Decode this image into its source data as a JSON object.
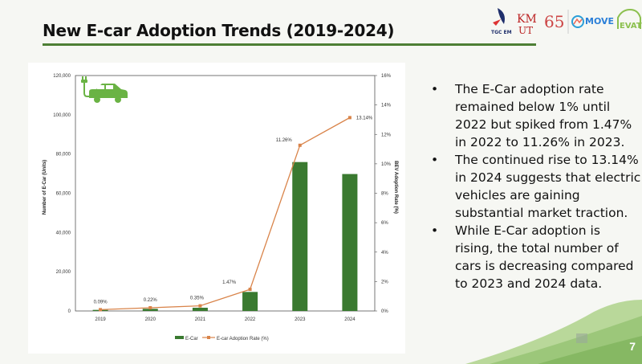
{
  "slide": {
    "title": "New E-car Adoption Trends (2019-2024)",
    "page_number": "7",
    "logos": [
      "TGC EM",
      "KMUTT",
      "65",
      "MOVE",
      "EVAT"
    ],
    "accent_color": "#4e7f35"
  },
  "bullets": [
    "The E-Car adoption rate remained below 1% until 2022 but spiked from 1.47% in 2022 to 11.26% in 2023.",
    "The continued rise to 13.14% in 2024 suggests that electric vehicles are gaining substantial market traction.",
    "While E-Car adoption is rising, the total number of cars is decreasing compared to 2023 and 2024 data."
  ],
  "chart_data": {
    "type": "bar+line",
    "categories": [
      "2019",
      "2020",
      "2021",
      "2022",
      "2023",
      "2024"
    ],
    "series": [
      {
        "name": "E-Car",
        "type": "bar",
        "axis": "left",
        "color": "#3a7a30",
        "values": [
          550,
          1100,
          1650,
          9700,
          75900,
          69800
        ]
      },
      {
        "name": "E-car Adoption Rate (%)",
        "type": "line",
        "axis": "right",
        "color": "#d9844a",
        "values": [
          0.09,
          0.22,
          0.35,
          1.47,
          11.26,
          13.14
        ],
        "data_labels": [
          "0.09%",
          "0.22%",
          "0.35%",
          "1.47%",
          "11.26%",
          "13.14%"
        ]
      }
    ],
    "ylabel": "Number of E-Car (Units)",
    "y2label": "BEV Adoption Rate (%)",
    "ylim": [
      0,
      120000
    ],
    "y2lim": [
      0,
      16
    ],
    "yticks": [
      "0",
      "20,000",
      "40,000",
      "60,000",
      "80,000",
      "100,000",
      "120,000"
    ],
    "y2ticks": [
      "0%",
      "2%",
      "4%",
      "6%",
      "8%",
      "10%",
      "12%",
      "14%",
      "16%"
    ],
    "legend": "bottom",
    "grid": false,
    "icon": "electric-car-icon"
  }
}
